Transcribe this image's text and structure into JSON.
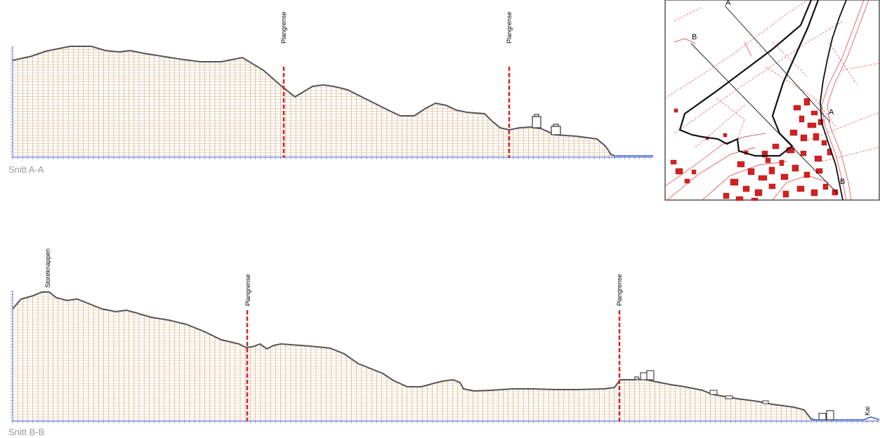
{
  "sections": [
    {
      "caption": "Snitt A-A",
      "boundary_label_1": "Plangrense",
      "boundary_label_2": "Plangrense"
    },
    {
      "caption": "Snitt B-B",
      "peak_label": "Storeknappen",
      "boundary_label_1": "Plangrense",
      "boundary_label_2": "Plangrense",
      "end_label": "Kai"
    }
  ],
  "key_map": {
    "line_a_start": "A",
    "line_a_end": "A",
    "line_b_start": "B",
    "line_b_end": "B"
  },
  "colors": {
    "terrain": "#555555",
    "grid_vertical": "#c8a47c",
    "grid_horizontal": "#d9b894",
    "boundary": "#e02020",
    "axis": "#3a5fd0",
    "map_lines": "#e23030",
    "map_buildings": "#d42020"
  }
}
